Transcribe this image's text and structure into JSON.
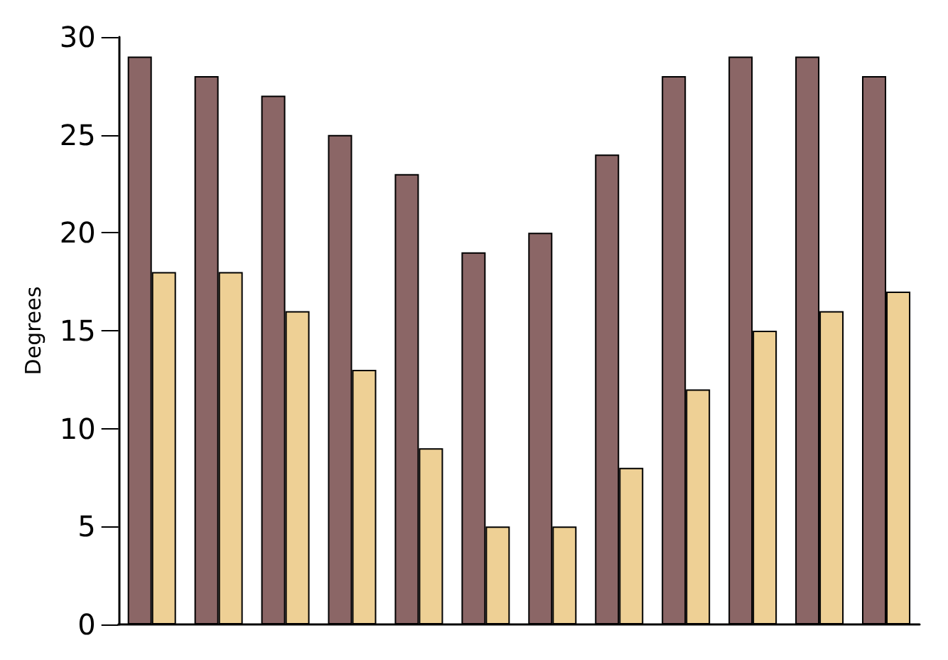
{
  "chart_data": {
    "type": "bar",
    "ylabel": "Degrees",
    "categories": [
      null,
      null,
      null,
      null,
      null,
      null,
      null,
      null,
      null,
      null,
      null,
      null
    ],
    "series": [
      {
        "color": "#8b6666",
        "values": [
          29,
          28,
          27,
          25,
          23,
          19,
          20,
          24,
          28,
          29,
          29,
          28
        ]
      },
      {
        "color": "#eed095",
        "values": [
          18,
          18,
          16,
          13,
          9,
          5,
          5,
          8,
          12,
          15,
          16,
          17
        ]
      }
    ],
    "ylim": [
      0,
      30
    ],
    "yticks": [
      0,
      5,
      10,
      15,
      20,
      25,
      30
    ],
    "grid": false
  }
}
